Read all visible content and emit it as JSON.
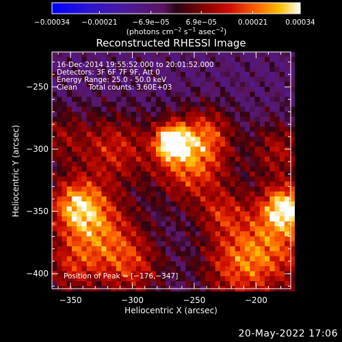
{
  "footer_date": "20-May-2022 17:06",
  "colors": {
    "background": "#000000",
    "text": "#ffffff",
    "plot_frame": "#ffffff"
  },
  "chart_data": {
    "type": "heatmap",
    "title": "Reconstructed RHESSI Image",
    "xlabel": "Heliocentric X (arcsec)",
    "ylabel": "Heliocentric Y (arcsec)",
    "xlim": [
      -365,
      -172
    ],
    "ylim": [
      -412,
      -222
    ],
    "xticks": [
      -350,
      -300,
      -250,
      -200
    ],
    "yticks": [
      -250,
      -300,
      -350,
      -400
    ],
    "xtick_labels": [
      "−350",
      "−300",
      "−250",
      "−200"
    ],
    "ytick_labels": [
      "−250",
      "−300",
      "−350",
      "−400"
    ],
    "annotations": [
      "16-Dec-2014 19:55:52.000 to 20:01:52.000",
      "Detectors: 3F 6F 7F 9F, Att 0",
      "Energy Range: 25.0 - 50.0 keV",
      "Clean     Total counts: 3.60E+03"
    ],
    "peak_annotation": "Position of Peak = [−176,−347]",
    "peak_position": [
      -176,
      -347
    ],
    "colorbar": {
      "range": [
        -0.00034,
        0.00034
      ],
      "tick_values": [
        -0.00034,
        -0.00021,
        -6.9e-05,
        6.9e-05,
        0.00021,
        0.00034
      ],
      "tick_labels": [
        "−0.00034",
        "−0.00021",
        "−6.9e−05",
        "6.9e−05",
        "0.00021",
        "0.00034"
      ],
      "unit_label_parts": [
        "(photons cm",
        "−2",
        " s",
        "−1",
        " asec",
        "−2",
        ")"
      ],
      "colormap": "red-temperature"
    },
    "grid": false,
    "notable_features": [
      {
        "description": "brightest compact source",
        "x": -268,
        "y": -294
      },
      {
        "description": "bright source lower right (peak)",
        "x": -176,
        "y": -347
      },
      {
        "description": "bright source lower left",
        "x": -345,
        "y": -345
      }
    ]
  }
}
